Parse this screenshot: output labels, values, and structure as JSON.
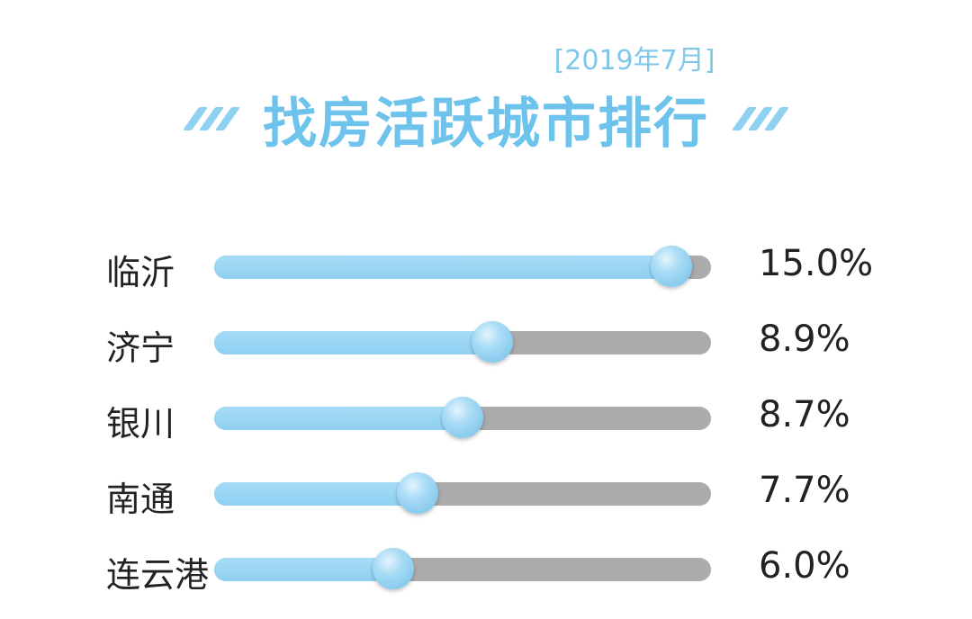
{
  "header": {
    "date": "[2019年7月]",
    "title": "找房活跃城市排行"
  },
  "colors": {
    "accent": "#6ec3ec",
    "bar_fill": "#97d4f3",
    "bar_track": "#ababab"
  },
  "chart_data": {
    "type": "bar",
    "orientation": "horizontal",
    "title": "找房活跃城市排行",
    "subtitle": "[2019年7月]",
    "categories": [
      "临沂",
      "济宁",
      "银川",
      "南通",
      "连云港"
    ],
    "values": [
      15.0,
      8.9,
      8.7,
      7.7,
      6.0
    ],
    "value_labels": [
      "15.0%",
      "8.9%",
      "8.7%",
      "7.7%",
      "6.0%"
    ],
    "fill_fractions": [
      0.92,
      0.56,
      0.5,
      0.41,
      0.36
    ],
    "unit": "%"
  }
}
